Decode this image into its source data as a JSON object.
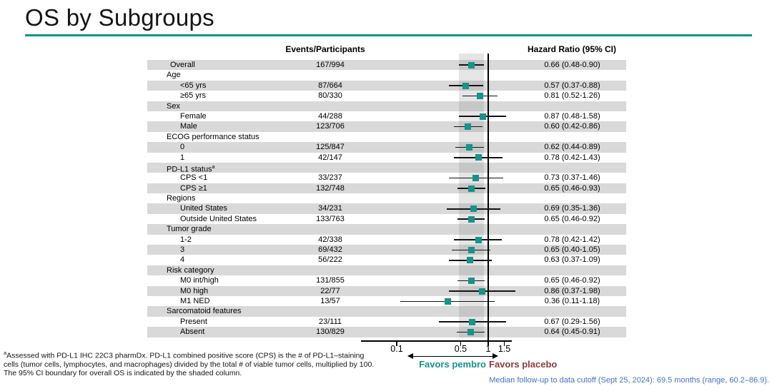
{
  "slide": {
    "title": "OS by Subgroups",
    "accent_color": "#16938B",
    "favors_left_color": "#16938B",
    "favors_right_color": "#8E3B39",
    "row_band_color": "#d9d9d9"
  },
  "chart_data": {
    "type": "forest",
    "columns": {
      "events": "Events/Participants",
      "hr": "Hazard Ratio (95% CI)"
    },
    "axis": {
      "scale": "log",
      "ticks": [
        0.1,
        0.5,
        1,
        1.5
      ],
      "tick_labels": [
        "0.1",
        "0.5",
        "1",
        "1.5"
      ],
      "ref_line": 1,
      "shaded_band": [
        0.48,
        0.9
      ],
      "shaded_band_meaning": "95% CI boundary for overall OS"
    },
    "favors": {
      "left": "Favors pembro",
      "right": "Favors placebo"
    },
    "rows": [
      {
        "label": "Overall",
        "indent": 1,
        "events": "167/994",
        "hr": 0.66,
        "lo": 0.48,
        "hi": 0.9,
        "hr_text": "0.66 (0.48-0.90)"
      },
      {
        "label": "Age",
        "indent": 0
      },
      {
        "label": "<65 yrs",
        "indent": 2,
        "events": "87/664",
        "hr": 0.57,
        "lo": 0.37,
        "hi": 0.88,
        "hr_text": "0.57 (0.37-0.88)"
      },
      {
        "label": "≥65 yrs",
        "indent": 2,
        "events": "80/330",
        "hr": 0.81,
        "lo": 0.52,
        "hi": 1.26,
        "hr_text": "0.81 (0.52-1.26)"
      },
      {
        "label": "Sex",
        "indent": 0
      },
      {
        "label": "Female",
        "indent": 2,
        "events": "44/288",
        "hr": 0.87,
        "lo": 0.48,
        "hi": 1.58,
        "hr_text": "0.87 (0.48-1.58)"
      },
      {
        "label": "Male",
        "indent": 2,
        "events": "123/706",
        "hr": 0.6,
        "lo": 0.42,
        "hi": 0.86,
        "hr_text": "0.60 (0.42-0.86)"
      },
      {
        "label": "ECOG performance status",
        "indent": 0
      },
      {
        "label": "0",
        "indent": 2,
        "events": "125/847",
        "hr": 0.62,
        "lo": 0.44,
        "hi": 0.89,
        "hr_text": "0.62 (0.44-0.89)"
      },
      {
        "label": "1",
        "indent": 2,
        "events": "42/147",
        "hr": 0.78,
        "lo": 0.42,
        "hi": 1.43,
        "hr_text": "0.78 (0.42-1.43)"
      },
      {
        "label": "PD-L1 status",
        "sup": "a",
        "indent": 0
      },
      {
        "label": "CPS <1",
        "indent": 2,
        "events": "33/237",
        "hr": 0.73,
        "lo": 0.37,
        "hi": 1.46,
        "hr_text": "0.73 (0.37-1.46)"
      },
      {
        "label": "CPS ≥1",
        "indent": 2,
        "events": "132/748",
        "hr": 0.65,
        "lo": 0.46,
        "hi": 0.93,
        "hr_text": "0.65 (0.46-0.93)"
      },
      {
        "label": "Regions",
        "indent": 0
      },
      {
        "label": "United States",
        "indent": 2,
        "events": "34/231",
        "hr": 0.69,
        "lo": 0.35,
        "hi": 1.36,
        "hr_text": "0.69 (0.35-1.36)"
      },
      {
        "label": "Outside United States",
        "indent": 2,
        "events": "133/763",
        "hr": 0.65,
        "lo": 0.46,
        "hi": 0.92,
        "hr_text": "0.65 (0.46-0.92)"
      },
      {
        "label": "Tumor grade",
        "indent": 0
      },
      {
        "label": "1-2",
        "indent": 2,
        "events": "42/338",
        "hr": 0.78,
        "lo": 0.42,
        "hi": 1.42,
        "hr_text": "0.78 (0.42-1.42)"
      },
      {
        "label": "3",
        "indent": 2,
        "events": "69/432",
        "hr": 0.65,
        "lo": 0.4,
        "hi": 1.05,
        "hr_text": "0.65 (0.40-1.05)"
      },
      {
        "label": "4",
        "indent": 2,
        "events": "56/222",
        "hr": 0.63,
        "lo": 0.37,
        "hi": 1.09,
        "hr_text": "0.63 (0.37-1.09)"
      },
      {
        "label": "Risk category",
        "indent": 0
      },
      {
        "label": "M0 int/high",
        "indent": 2,
        "events": "131/855",
        "hr": 0.65,
        "lo": 0.46,
        "hi": 0.92,
        "hr_text": "0.65 (0.46-0.92)"
      },
      {
        "label": "M0 high",
        "indent": 2,
        "events": "22/77",
        "hr": 0.86,
        "lo": 0.37,
        "hi": 1.98,
        "hr_text": "0.86 (0.37-1.98)"
      },
      {
        "label": "M1 NED",
        "indent": 2,
        "events": "13/57",
        "hr": 0.36,
        "lo": 0.11,
        "hi": 1.18,
        "hr_text": "0.36 (0.11-1.18)"
      },
      {
        "label": "Sarcomatoid features",
        "indent": 0
      },
      {
        "label": "Present",
        "indent": 2,
        "events": "23/111",
        "hr": 0.67,
        "lo": 0.29,
        "hi": 1.56,
        "hr_text": "0.67 (0.29-1.56)"
      },
      {
        "label": "Absent",
        "indent": 2,
        "events": "130/829",
        "hr": 0.64,
        "lo": 0.45,
        "hi": 0.91,
        "hr_text": "0.64 (0.45-0.91)"
      }
    ]
  },
  "footnotes": {
    "sup": "a",
    "line1": "Assessed with PD-L1 IHC 22C3 pharmDx. PD-L1 combined positive score (CPS) is the # of PD-L1–staining",
    "line2": "cells (tumor cells, lymphocytes, and macrophages) divided by the total # of viable tumor cells, multiplied by 100.",
    "line3": "The 95% CI boundary for overall OS is indicated by the shaded column."
  },
  "notes": {
    "follow_up": "Median follow-up to data cutoff (Sept 25, 2024): 69.5 months (range, 60.2–86.9)."
  }
}
